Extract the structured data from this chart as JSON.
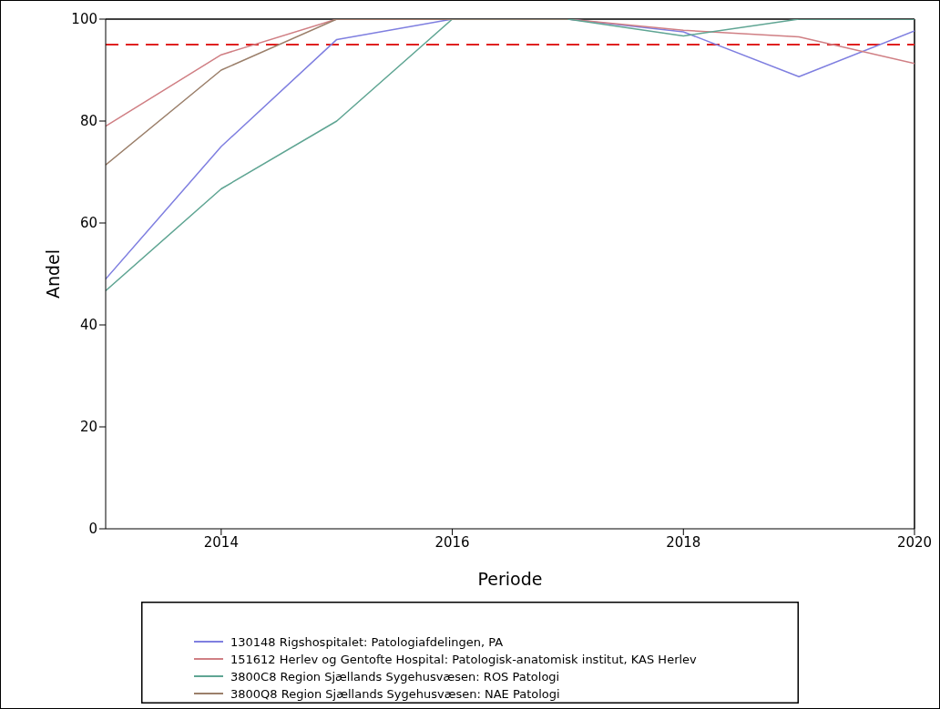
{
  "chart_data": {
    "type": "line",
    "xlabel": "Periode",
    "ylabel": "Andel",
    "x": [
      2013,
      2014,
      2015,
      2016,
      2017,
      2018,
      2019,
      2020
    ],
    "series": [
      {
        "name": "130148 Rigshospitalet: Patologiafdelingen, PA",
        "color": "#7f7fe0",
        "values": [
          49,
          75,
          96,
          100,
          100,
          97.5,
          88.7,
          97.7
        ]
      },
      {
        "name": "151612 Herlev og Gentofte Hospital: Patologisk-anatomisk institut, KAS Herlev",
        "color": "#d07f84",
        "values": [
          79,
          93,
          100,
          100,
          100,
          97.8,
          96.5,
          91.3
        ]
      },
      {
        "name": "3800C8 Region Sjællands Sygehusvæsen: ROS Patologi",
        "color": "#5fa593",
        "values": [
          46.7,
          66.7,
          80,
          100,
          100,
          96.7,
          100,
          100
        ]
      },
      {
        "name": "3800Q8 Region Sjællands Sygehusvæsen: NAE Patologi",
        "color": "#9b7f6a",
        "values": [
          71.4,
          90,
          100,
          100,
          100,
          null,
          null,
          null
        ]
      }
    ],
    "xlim": [
      2013,
      2020
    ],
    "xticks": [
      2014,
      2016,
      2018,
      2020
    ],
    "ylim": [
      0,
      100
    ],
    "yticks": [
      0,
      20,
      40,
      60,
      80,
      100
    ],
    "ref_lines": [
      {
        "axis": "y",
        "value": 95,
        "color": "#e02020",
        "line_style": "dashed"
      }
    ],
    "grid": false,
    "legend": "bottom",
    "line_style": "solid",
    "marker": "none"
  }
}
